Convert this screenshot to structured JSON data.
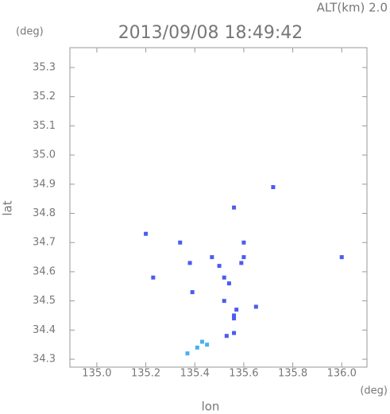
{
  "chart_data": {
    "type": "scatter",
    "title": "2013/09/08 18:49:42",
    "altitude_label": "ALT(km) 2.0",
    "y_unit": "(deg)",
    "x_unit": "(deg)",
    "ylabel": "lat",
    "xlabel": "lon",
    "xlim": [
      134.89,
      136.103
    ],
    "ylim": [
      34.273,
      35.368
    ],
    "xticks": [
      {
        "value": 135,
        "label": "135.0"
      },
      135.2,
      135.4,
      135.6,
      135.8,
      {
        "value": 136,
        "label": "136.0"
      }
    ],
    "yticks": [
      34.3,
      34.4,
      34.5,
      34.6,
      34.7,
      34.8,
      34.9,
      {
        "value": 35,
        "label": "35.0"
      },
      35.1,
      35.2,
      35.3
    ],
    "series": [
      {
        "color": "#4a5cf0",
        "x": [
          135.72,
          135.2,
          135.56,
          135.23,
          135.34,
          135.38,
          135.39,
          136.0,
          135.6,
          135.47,
          135.5,
          135.52,
          135.54,
          135.52,
          135.56,
          135.56,
          135.65,
          135.56,
          135.53,
          135.59,
          135.6,
          135.57
        ],
        "y": [
          34.89,
          34.73,
          34.82,
          34.58,
          34.7,
          34.63,
          34.53,
          34.65,
          34.7,
          34.65,
          34.62,
          34.58,
          34.56,
          34.5,
          34.45,
          34.44,
          34.48,
          34.39,
          34.38,
          34.63,
          34.65,
          34.47
        ]
      },
      {
        "color": "#4ab0ee",
        "x": [
          135.45,
          135.41,
          135.37,
          135.43
        ],
        "y": [
          34.35,
          34.34,
          34.32,
          34.36
        ]
      }
    ]
  }
}
